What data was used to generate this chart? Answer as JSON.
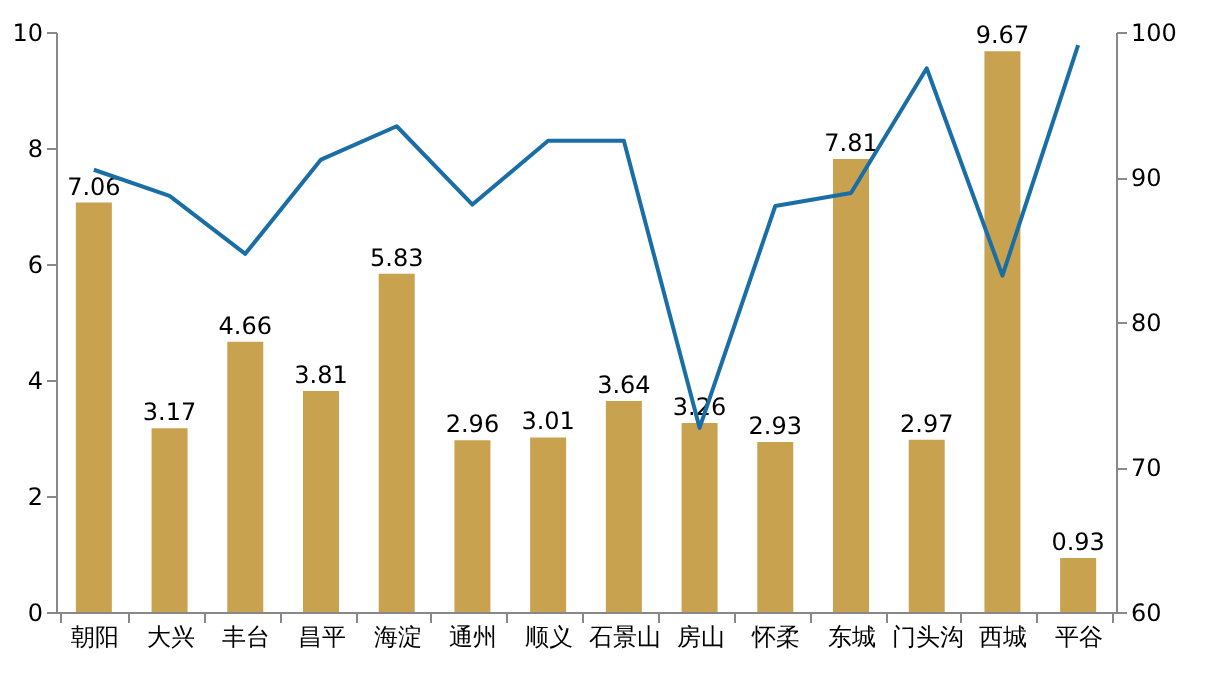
{
  "chart_data": {
    "type": "bar",
    "categories": [
      "朝阳",
      "大兴",
      "丰台",
      "昌平",
      "海淀",
      "通州",
      "顺义",
      "石景山",
      "房山",
      "怀柔",
      "东城",
      "门头沟",
      "西城",
      "平谷"
    ],
    "series": [
      {
        "color": "#c8a24f",
        "values": [
          7.06,
          3.17,
          4.66,
          3.81,
          5.83,
          2.96,
          3.01,
          3.64,
          3.26,
          2.93,
          7.81,
          2.97,
          9.67,
          0.93
        ],
        "value_labels": [
          "7.06",
          "3.17",
          "4.66",
          "3.81",
          "5.83",
          "2.96",
          "3.01",
          "3.64",
          "3.26",
          "2.93",
          "7.81",
          "2.97",
          "9.67",
          "0.93"
        ]
      },
      {
        "type": "line",
        "axis": "y2",
        "color": "#1a6ea6",
        "values": [
          90.5,
          88.7,
          84.7,
          91.2,
          93.5,
          88.1,
          92.5,
          92.5,
          72.7,
          88.0,
          88.9,
          97.5,
          83.2,
          99.1
        ]
      }
    ],
    "ylim": [
      0,
      10
    ],
    "yticks": [
      0,
      2,
      4,
      6,
      8,
      10
    ],
    "y2lim": [
      60,
      100
    ],
    "y2ticks": [
      60,
      70,
      80,
      90,
      100
    ],
    "grid": false,
    "marker": "none",
    "line_style": "solid"
  }
}
